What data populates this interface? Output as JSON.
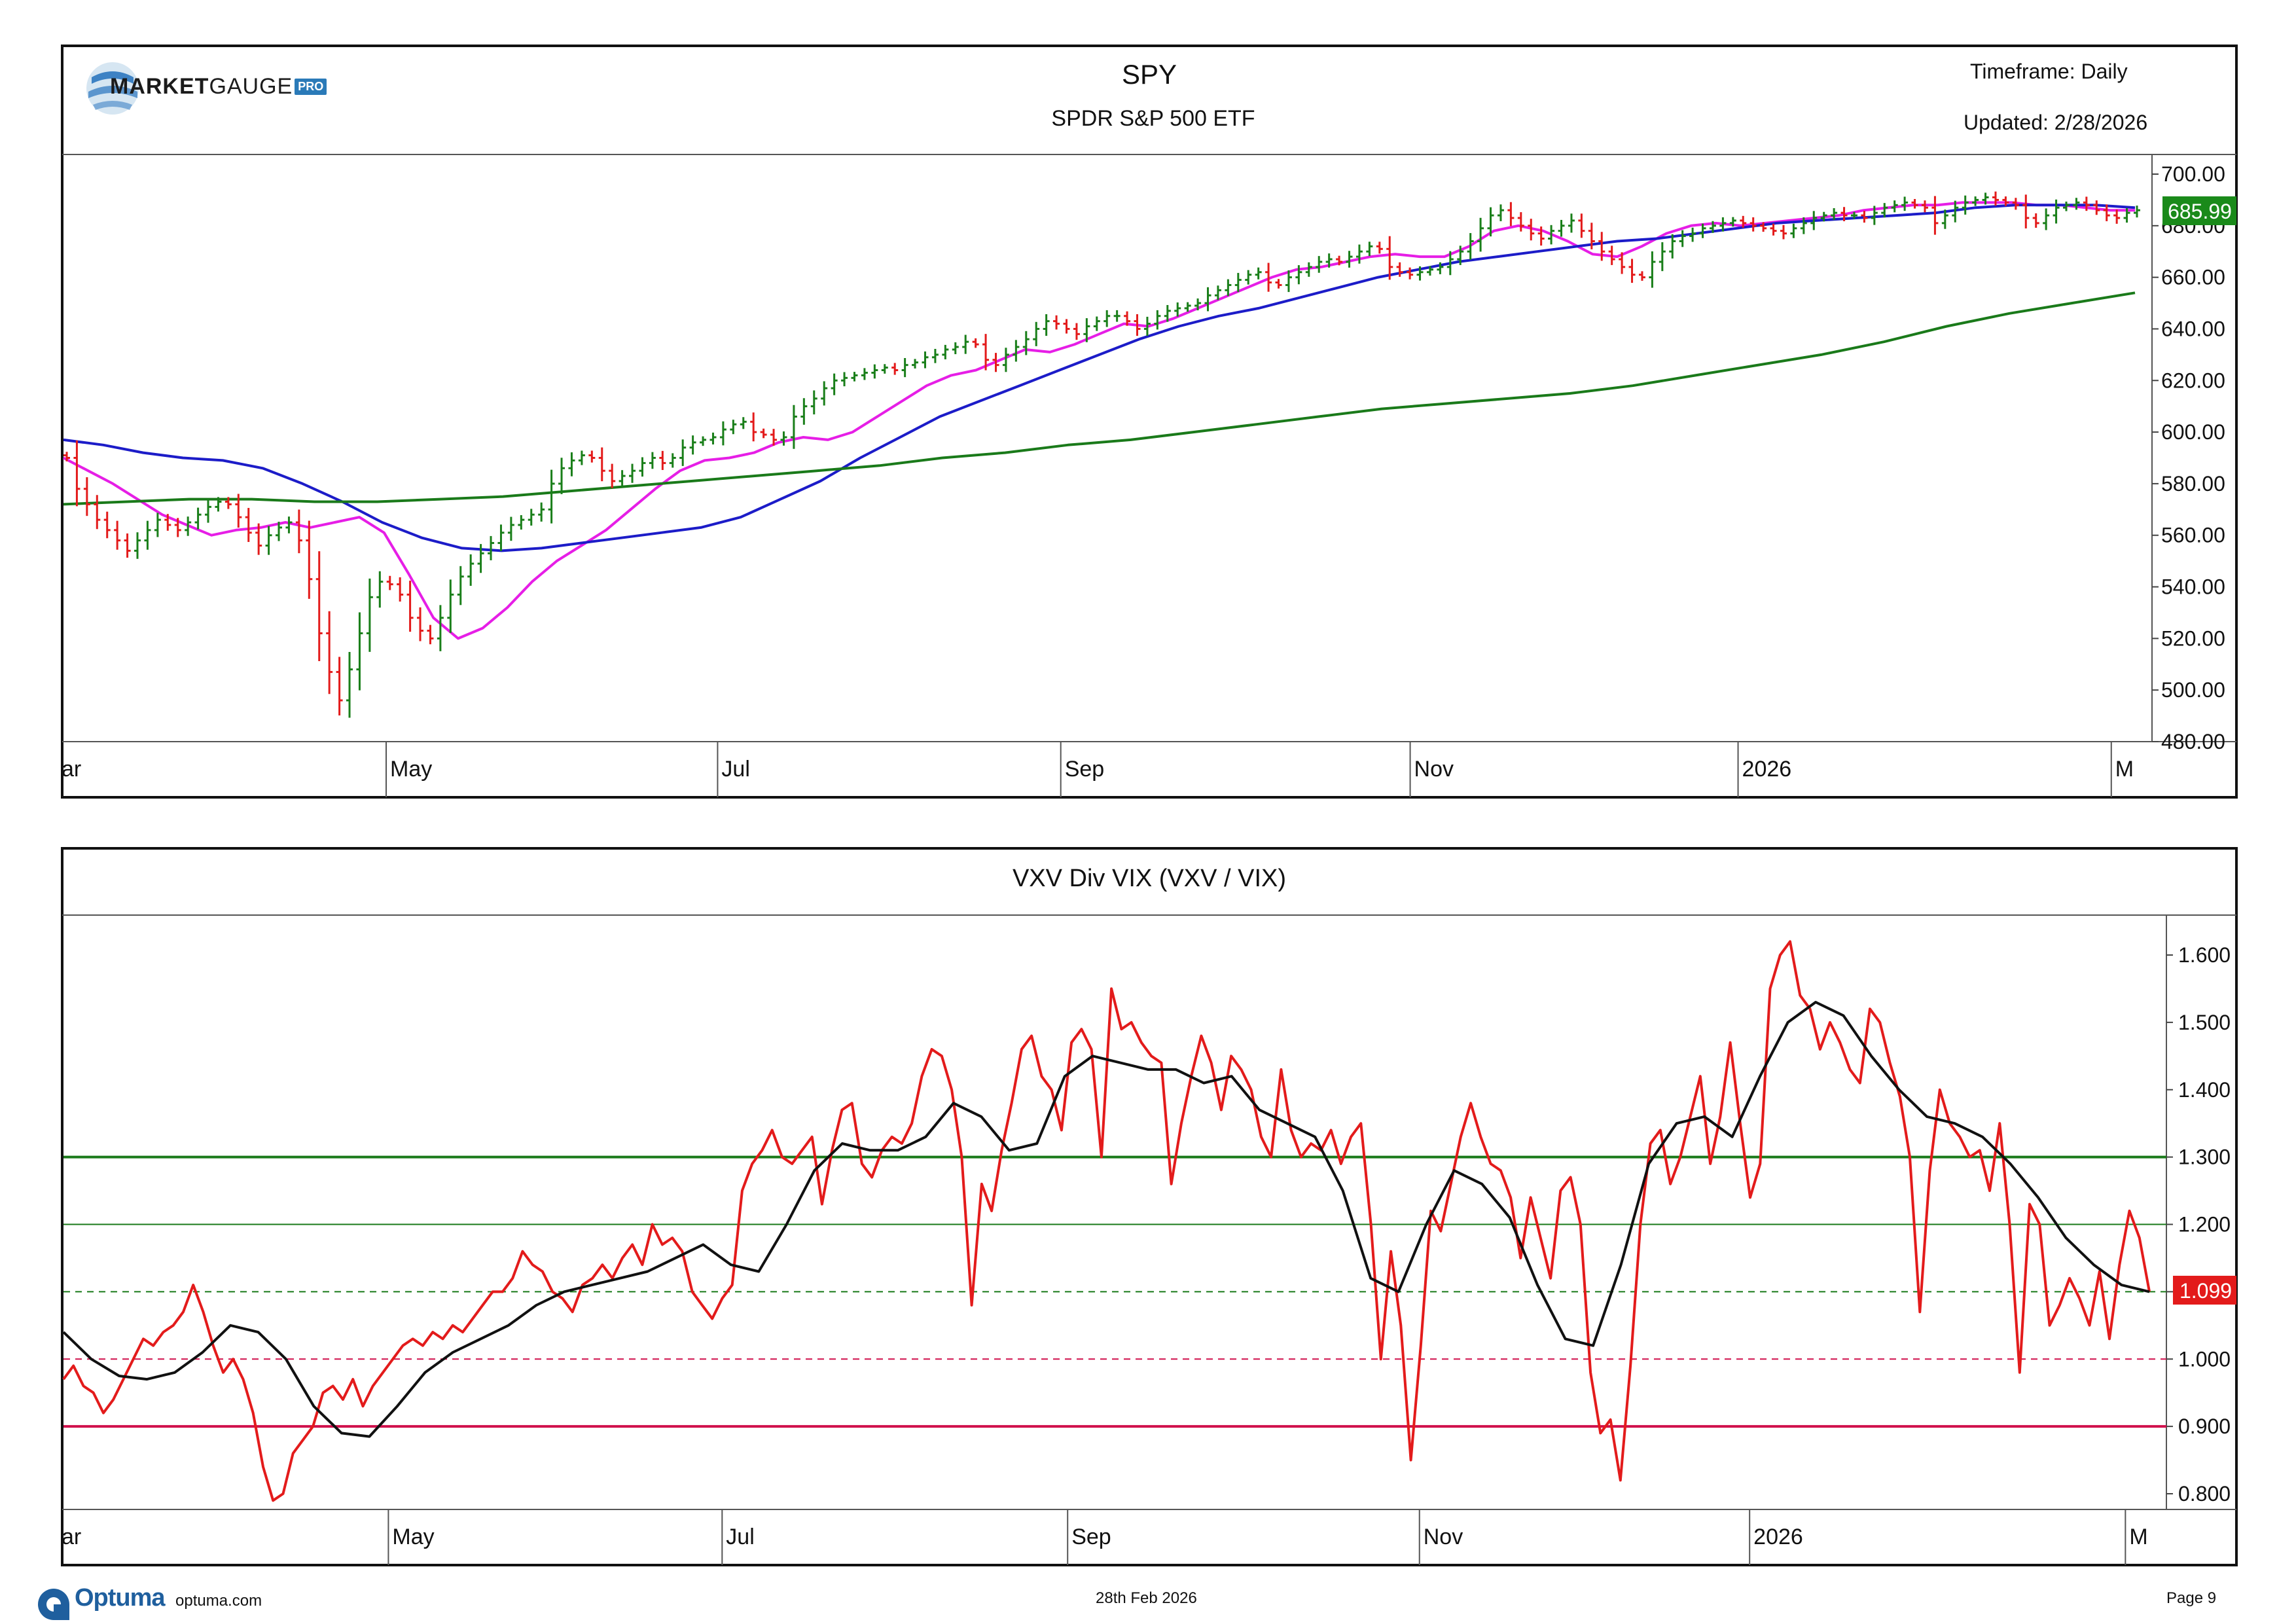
{
  "branding": {
    "logo_bold": "MARKET",
    "logo_light": "GAUGE",
    "logo_badge": "PRO",
    "footer_brand": "Optuma",
    "footer_site": "optuma.com"
  },
  "header": {
    "symbol": "SPY",
    "name": "SPDR S&P 500 ETF",
    "timeframe": "Timeframe: Daily",
    "updated": "Updated: 2/28/2026"
  },
  "footer": {
    "date": "28th Feb 2026",
    "page": "Page 9"
  },
  "colors": {
    "up_bar": "#1a7f1a",
    "down_bar": "#e31b1b",
    "ma_short": "#e61ee6",
    "ma_mid": "#1c1cc8",
    "ma_long": "#1a7a1a",
    "ratio_line": "#e31b1b",
    "ratio_ma": "#111111",
    "level_high": "#1a7a1a",
    "level_low": "#d0104c",
    "price_badge": "#1a8a1a",
    "ratio_badge": "#e31b1b"
  },
  "chart_data": [
    {
      "type": "ohlc",
      "title": "SPY",
      "subtitle": "SPDR S&P 500 ETF",
      "x_tick_labels": [
        "ar",
        "May",
        "Jul",
        "Sep",
        "Nov",
        "2026",
        "M"
      ],
      "y_tick_labels": [
        "700.00",
        "680.00",
        "660.00",
        "640.00",
        "620.00",
        "600.00",
        "580.00",
        "560.00",
        "540.00",
        "520.00",
        "500.00",
        "480.00"
      ],
      "ylim": [
        480,
        708
      ],
      "last_value_label": "685.99",
      "last_value": 685.99,
      "series": [
        {
          "name": "Price (daily close, approx)",
          "values": [
            590,
            578,
            572,
            566,
            562,
            558,
            554,
            558,
            562,
            566,
            564,
            562,
            565,
            568,
            571,
            573,
            572,
            567,
            561,
            556,
            560,
            563,
            565,
            558,
            543,
            522,
            507,
            496,
            508,
            522,
            536,
            542,
            541,
            537,
            528,
            523,
            520,
            528,
            537,
            544,
            549,
            553,
            557,
            561,
            564,
            566,
            568,
            570,
            580,
            586,
            589,
            591,
            590,
            585,
            581,
            583,
            585,
            588,
            590,
            588,
            590,
            594,
            596,
            597,
            598,
            601,
            603,
            604,
            600,
            599,
            597,
            598,
            606,
            610,
            613,
            617,
            620,
            621,
            622,
            623,
            624,
            625,
            624,
            626,
            627,
            629,
            630,
            632,
            633,
            635,
            634,
            628,
            626,
            630,
            633,
            636,
            640,
            643,
            642,
            640,
            638,
            641,
            643,
            645,
            645,
            643,
            640,
            642,
            645,
            647,
            648,
            649,
            650,
            653,
            655,
            657,
            659,
            661,
            662,
            658,
            657,
            660,
            662,
            664,
            666,
            667,
            666,
            668,
            670,
            672,
            671,
            664,
            662,
            661,
            662,
            663,
            664,
            667,
            670,
            674,
            679,
            684,
            686,
            683,
            680,
            677,
            675,
            678,
            680,
            682,
            678,
            674,
            670,
            667,
            664,
            661,
            660,
            666,
            670,
            674,
            676,
            677,
            679,
            680,
            681,
            682,
            681,
            680,
            679,
            678,
            677,
            679,
            681,
            683,
            684,
            685,
            684,
            684,
            683,
            685,
            687,
            688,
            689,
            688,
            687,
            681,
            684,
            687,
            689,
            690,
            691,
            690,
            689,
            688,
            683,
            681,
            684,
            687,
            688,
            689,
            688,
            686,
            684,
            683,
            685,
            686
          ]
        },
        {
          "name": "Short moving average",
          "color": "#e61ee6",
          "values": [
            590,
            585,
            580,
            574,
            568,
            564,
            560,
            562,
            563,
            565,
            563,
            565,
            567,
            561,
            545,
            528,
            520,
            524,
            532,
            542,
            550,
            556,
            562,
            570,
            578,
            585,
            589,
            590,
            592,
            596,
            598,
            597,
            600,
            606,
            612,
            618,
            622,
            624,
            628,
            632,
            631,
            634,
            638,
            642,
            641,
            644,
            648,
            652,
            656,
            660,
            663,
            664,
            666,
            668,
            669,
            668,
            668,
            672,
            678,
            680,
            678,
            674,
            669,
            668,
            672,
            677,
            680,
            681,
            680,
            681,
            682,
            683,
            684,
            686,
            687,
            688,
            688,
            689,
            689,
            689,
            688,
            688,
            687,
            686,
            686
          ]
        },
        {
          "name": "Mid moving average",
          "color": "#1c1cc8",
          "values": [
            597,
            595,
            592,
            590,
            589,
            586,
            580,
            573,
            565,
            559,
            555,
            554,
            555,
            557,
            559,
            561,
            563,
            567,
            574,
            581,
            590,
            598,
            606,
            612,
            618,
            624,
            630,
            636,
            641,
            645,
            648,
            652,
            656,
            660,
            663,
            666,
            668,
            670,
            672,
            674,
            675,
            677,
            679,
            681,
            682,
            683,
            684,
            685,
            687,
            688,
            688,
            688,
            687
          ]
        },
        {
          "name": "Long moving average",
          "color": "#1a7a1a",
          "values": [
            572,
            573,
            574,
            574,
            573,
            573,
            574,
            575,
            577,
            579,
            581,
            583,
            585,
            587,
            590,
            592,
            595,
            597,
            600,
            603,
            606,
            609,
            611,
            613,
            615,
            618,
            622,
            626,
            630,
            635,
            641,
            646,
            650,
            654
          ]
        }
      ]
    },
    {
      "type": "line",
      "title": "VXV Div VIX (VXV / VIX)",
      "x_tick_labels": [
        "ar",
        "May",
        "Jul",
        "Sep",
        "Nov",
        "2026",
        "M"
      ],
      "y_tick_labels": [
        "1.600",
        "1.500",
        "1.400",
        "1.300",
        "1.200",
        "1.100",
        "1.000",
        "0.900",
        "0.800"
      ],
      "ylim": [
        0.78,
        1.64
      ],
      "last_value_label": "1.099",
      "last_value": 1.099,
      "horizontal_levels": [
        1.3,
        1.2,
        1.1,
        1.0,
        0.9
      ],
      "series": [
        {
          "name": "VXV / VIX",
          "color": "#e31b1b",
          "values": [
            0.97,
            0.99,
            0.96,
            0.95,
            0.92,
            0.94,
            0.97,
            1.0,
            1.03,
            1.02,
            1.04,
            1.05,
            1.07,
            1.11,
            1.07,
            1.02,
            0.98,
            1.0,
            0.97,
            0.92,
            0.84,
            0.79,
            0.8,
            0.86,
            0.88,
            0.9,
            0.95,
            0.96,
            0.94,
            0.97,
            0.93,
            0.96,
            0.98,
            1.0,
            1.02,
            1.03,
            1.02,
            1.04,
            1.03,
            1.05,
            1.04,
            1.06,
            1.08,
            1.1,
            1.1,
            1.12,
            1.16,
            1.14,
            1.13,
            1.1,
            1.09,
            1.07,
            1.11,
            1.12,
            1.14,
            1.12,
            1.15,
            1.17,
            1.14,
            1.2,
            1.17,
            1.18,
            1.16,
            1.1,
            1.08,
            1.06,
            1.09,
            1.11,
            1.25,
            1.29,
            1.31,
            1.34,
            1.3,
            1.29,
            1.31,
            1.33,
            1.23,
            1.31,
            1.37,
            1.38,
            1.29,
            1.27,
            1.31,
            1.33,
            1.32,
            1.35,
            1.42,
            1.46,
            1.45,
            1.4,
            1.3,
            1.08,
            1.26,
            1.22,
            1.31,
            1.38,
            1.46,
            1.48,
            1.42,
            1.4,
            1.34,
            1.47,
            1.49,
            1.46,
            1.3,
            1.55,
            1.49,
            1.5,
            1.47,
            1.45,
            1.44,
            1.26,
            1.35,
            1.42,
            1.48,
            1.44,
            1.37,
            1.45,
            1.43,
            1.4,
            1.33,
            1.3,
            1.43,
            1.34,
            1.3,
            1.32,
            1.31,
            1.34,
            1.29,
            1.33,
            1.35,
            1.2,
            1.0,
            1.16,
            1.05,
            0.85,
            1.02,
            1.22,
            1.19,
            1.26,
            1.33,
            1.38,
            1.33,
            1.29,
            1.28,
            1.24,
            1.15,
            1.24,
            1.18,
            1.12,
            1.25,
            1.27,
            1.2,
            0.98,
            0.89,
            0.91,
            0.82,
            0.99,
            1.2,
            1.32,
            1.34,
            1.26,
            1.3,
            1.36,
            1.42,
            1.29,
            1.36,
            1.47,
            1.35,
            1.24,
            1.29,
            1.55,
            1.6,
            1.62,
            1.54,
            1.52,
            1.46,
            1.5,
            1.47,
            1.43,
            1.41,
            1.52,
            1.5,
            1.44,
            1.39,
            1.3,
            1.07,
            1.28,
            1.4,
            1.35,
            1.33,
            1.3,
            1.31,
            1.25,
            1.35,
            1.2,
            0.98,
            1.23,
            1.2,
            1.05,
            1.08,
            1.12,
            1.09,
            1.05,
            1.13,
            1.03,
            1.14,
            1.22,
            1.18,
            1.1
          ]
        },
        {
          "name": "Moving average",
          "color": "#111111",
          "values": [
            1.04,
            1.0,
            0.975,
            0.97,
            0.98,
            1.01,
            1.05,
            1.04,
            1.0,
            0.93,
            0.89,
            0.885,
            0.93,
            0.98,
            1.01,
            1.03,
            1.05,
            1.08,
            1.1,
            1.11,
            1.12,
            1.13,
            1.15,
            1.17,
            1.14,
            1.13,
            1.2,
            1.28,
            1.32,
            1.31,
            1.31,
            1.33,
            1.38,
            1.36,
            1.31,
            1.32,
            1.42,
            1.45,
            1.44,
            1.43,
            1.43,
            1.41,
            1.42,
            1.37,
            1.35,
            1.33,
            1.25,
            1.12,
            1.1,
            1.2,
            1.28,
            1.26,
            1.21,
            1.11,
            1.03,
            1.02,
            1.14,
            1.29,
            1.35,
            1.36,
            1.33,
            1.42,
            1.5,
            1.53,
            1.51,
            1.45,
            1.4,
            1.36,
            1.35,
            1.33,
            1.29,
            1.24,
            1.18,
            1.14,
            1.11,
            1.1
          ]
        }
      ]
    }
  ]
}
